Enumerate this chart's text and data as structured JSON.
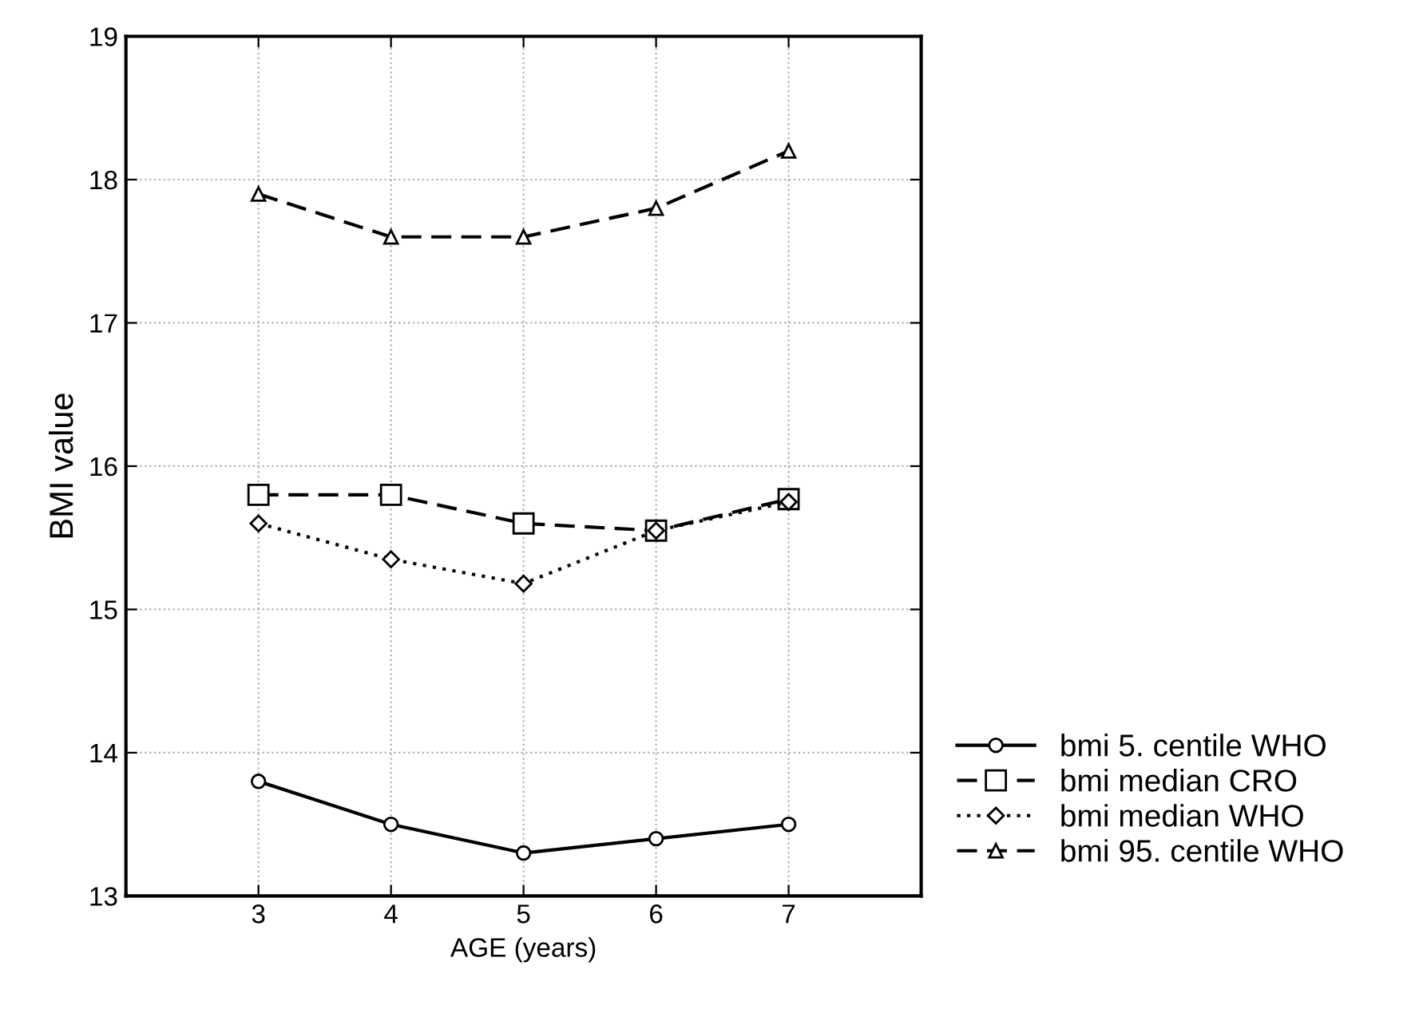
{
  "chart_data": {
    "type": "line",
    "xlabel": "AGE (years)",
    "ylabel": "BMI value",
    "x": [
      3,
      4,
      5,
      6,
      7
    ],
    "xlim": [
      2,
      8
    ],
    "xticks": [
      3,
      4,
      5,
      6,
      7
    ],
    "ylim": [
      13,
      19
    ],
    "yticks": [
      13,
      14,
      15,
      16,
      17,
      18,
      19
    ],
    "grid": true,
    "legend": "bottom right",
    "series": [
      {
        "name": "bmi 5. centile WHO",
        "color": "#000000",
        "marker": "circle",
        "line_style": "solid",
        "values": [
          13.8,
          13.5,
          13.3,
          13.4,
          13.5
        ]
      },
      {
        "name": "bmi median CRO",
        "color": "#000000",
        "marker": "square",
        "line_style": "dashed",
        "values": [
          15.8,
          15.8,
          15.6,
          15.55,
          15.77
        ]
      },
      {
        "name": "bmi median WHO",
        "color": "#000000",
        "marker": "diamond",
        "line_style": "dotted",
        "values": [
          15.6,
          15.35,
          15.18,
          15.55,
          15.75
        ]
      },
      {
        "name": "bmi 95. centile WHO",
        "color": "#000000",
        "marker": "triangle",
        "line_style": "dashed",
        "values": [
          17.9,
          17.6,
          17.6,
          17.8,
          18.2
        ]
      }
    ]
  }
}
